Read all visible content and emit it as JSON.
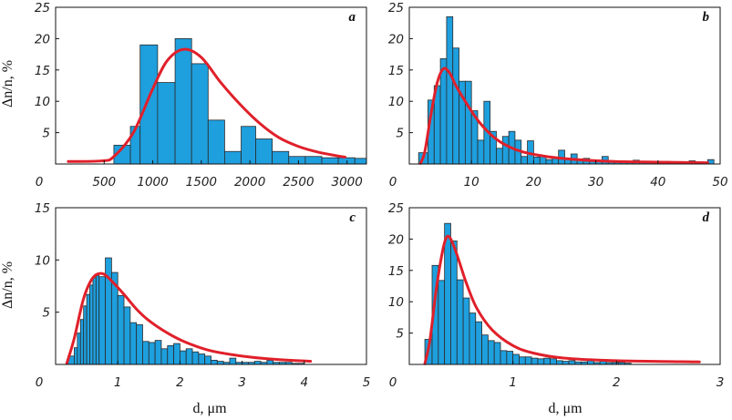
{
  "ylabel": "Δn/n, %",
  "xlabel": "d, μm",
  "colors": {
    "bar": "#1e9fde",
    "fit": "#e0202a"
  },
  "chart_data": [
    {
      "label": "a",
      "type": "bar",
      "xlim": [
        0,
        3200
      ],
      "ylim": [
        0,
        25
      ],
      "xticks": [
        0,
        500,
        1000,
        1500,
        2000,
        2500,
        3000
      ],
      "yticks": [
        5,
        10,
        15,
        20,
        25
      ],
      "bin_edges": [
        600,
        770,
        870,
        1050,
        1230,
        1400,
        1570,
        1740,
        1910,
        2060,
        2230,
        2400,
        2570,
        2740,
        2910,
        3080,
        3200
      ],
      "values": [
        3,
        6,
        19,
        13,
        20,
        16,
        7,
        2,
        6,
        4,
        2,
        1.2,
        1.2,
        1,
        1,
        0.9
      ],
      "fit": [
        [
          130,
          0.4
        ],
        [
          480,
          0.5
        ],
        [
          600,
          1.2
        ],
        [
          800,
          5
        ],
        [
          1000,
          12
        ],
        [
          1150,
          16.5
        ],
        [
          1320,
          18.3
        ],
        [
          1500,
          17
        ],
        [
          1700,
          13
        ],
        [
          1900,
          9.5
        ],
        [
          2100,
          6.5
        ],
        [
          2300,
          4.2
        ],
        [
          2500,
          2.8
        ],
        [
          2700,
          1.9
        ],
        [
          2900,
          1.3
        ],
        [
          2980,
          1.1
        ]
      ]
    },
    {
      "label": "b",
      "type": "bar",
      "xlim": [
        0,
        50
      ],
      "ylim": [
        0,
        25
      ],
      "xticks": [
        0,
        10,
        20,
        30,
        40,
        50
      ],
      "yticks": [
        5,
        10,
        15,
        20,
        25
      ],
      "bin_edges": [
        1.5,
        3,
        4,
        5,
        6,
        7,
        8,
        9,
        10,
        11,
        12,
        13,
        14,
        15,
        16,
        17,
        18,
        19,
        20,
        21,
        22,
        23,
        24,
        25,
        26,
        27,
        28,
        29,
        30,
        31,
        32,
        33,
        34,
        35,
        36,
        37,
        38,
        39,
        40,
        41,
        42,
        43,
        44,
        45,
        46,
        47,
        48,
        49
      ],
      "values": [
        1.8,
        10.2,
        12.5,
        16.8,
        23.5,
        18.5,
        13.2,
        13.2,
        8.5,
        3.8,
        10,
        5.2,
        2.5,
        4.4,
        5.2,
        3.8,
        1.2,
        3.7,
        1.1,
        1.3,
        0.7,
        0.9,
        2.2,
        0.7,
        1.6,
        0.8,
        0.9,
        0.6,
        0.4,
        1.2,
        0.3,
        0.3,
        0.5,
        0.3,
        0.6,
        0.3,
        0.2,
        0.2,
        0.2,
        0.4,
        0.2,
        0.2,
        0.2,
        0.5,
        0.2,
        0.2,
        0.7
      ],
      "fit": [
        [
          1.8,
          0.1
        ],
        [
          2.5,
          2
        ],
        [
          3.5,
          8
        ],
        [
          4.5,
          13
        ],
        [
          5.5,
          15.2
        ],
        [
          6.5,
          14.5
        ],
        [
          7.5,
          12.5
        ],
        [
          9,
          10
        ],
        [
          11,
          7
        ],
        [
          13,
          4.8
        ],
        [
          15,
          3.3
        ],
        [
          18,
          2
        ],
        [
          22,
          1.2
        ],
        [
          27,
          0.7
        ],
        [
          33,
          0.4
        ],
        [
          40,
          0.3
        ],
        [
          48,
          0.2
        ]
      ]
    },
    {
      "label": "c",
      "type": "bar",
      "xlim": [
        0,
        5
      ],
      "ylim": [
        0,
        15
      ],
      "xticks": [
        0,
        1,
        2,
        3,
        4,
        5
      ],
      "yticks": [
        5,
        10,
        15
      ],
      "bin_edges": [
        0.2,
        0.3,
        0.35,
        0.4,
        0.45,
        0.5,
        0.55,
        0.6,
        0.65,
        0.7,
        0.8,
        0.9,
        1,
        1.1,
        1.2,
        1.3,
        1.4,
        1.5,
        1.6,
        1.7,
        1.8,
        1.9,
        2,
        2.1,
        2.2,
        2.3,
        2.4,
        2.5,
        2.6,
        2.7,
        2.8,
        2.9,
        3,
        3.1,
        3.2,
        3.3,
        3.4,
        3.5,
        3.6,
        3.7,
        3.8,
        3.9,
        4
      ],
      "values": [
        0.8,
        1.6,
        3,
        4.3,
        5.6,
        6.7,
        7.6,
        8.3,
        8.5,
        8.4,
        10.2,
        8.8,
        6.6,
        5.5,
        4,
        3.8,
        2.2,
        2.1,
        2.3,
        1.5,
        1.8,
        2,
        1.3,
        1.5,
        1.2,
        1,
        0.8,
        0.4,
        0.3,
        0.2,
        0.6,
        0.2,
        0.2,
        0.2,
        0.3,
        0.2,
        0.4,
        0.2,
        0.2,
        0.2,
        0.1,
        0.1
      ],
      "fit": [
        [
          0.18,
          0.1
        ],
        [
          0.3,
          2.5
        ],
        [
          0.45,
          6.3
        ],
        [
          0.6,
          8.3
        ],
        [
          0.75,
          8.7
        ],
        [
          0.9,
          8
        ],
        [
          1.1,
          6.7
        ],
        [
          1.3,
          5.3
        ],
        [
          1.5,
          4.2
        ],
        [
          1.8,
          3
        ],
        [
          2.1,
          2.1
        ],
        [
          2.5,
          1.3
        ],
        [
          3,
          0.8
        ],
        [
          3.5,
          0.5
        ],
        [
          4.1,
          0.3
        ]
      ]
    },
    {
      "label": "d",
      "type": "bar",
      "xlim": [
        0,
        3
      ],
      "ylim": [
        0,
        25
      ],
      "xticks": [
        0,
        1,
        2,
        3
      ],
      "yticks": [
        5,
        10,
        15,
        20,
        25
      ],
      "bin_edges": [
        0.15,
        0.22,
        0.28,
        0.34,
        0.4,
        0.46,
        0.52,
        0.58,
        0.64,
        0.7,
        0.76,
        0.82,
        0.88,
        0.94,
        1,
        1.06,
        1.12,
        1.18,
        1.24,
        1.3,
        1.36,
        1.42,
        1.48,
        1.54,
        1.6,
        1.66,
        1.72,
        1.78,
        1.84,
        1.9,
        1.96,
        2.02,
        2.08,
        2.14
      ],
      "values": [
        4,
        15.8,
        13.4,
        22.5,
        19.7,
        13.5,
        10.6,
        8.2,
        6.8,
        4.7,
        3.8,
        3.5,
        2.2,
        2.1,
        1.6,
        1.2,
        1.2,
        1,
        0.9,
        1,
        0.9,
        0.6,
        0.5,
        0.6,
        0.4,
        0.4,
        0.7,
        0.3,
        0.6,
        0.3,
        0.3,
        0.3,
        0.2
      ],
      "fit": [
        [
          0.15,
          0.1
        ],
        [
          0.2,
          4
        ],
        [
          0.26,
          12
        ],
        [
          0.32,
          18
        ],
        [
          0.36,
          20.3
        ],
        [
          0.4,
          20
        ],
        [
          0.46,
          17.5
        ],
        [
          0.55,
          13
        ],
        [
          0.65,
          9
        ],
        [
          0.8,
          5.5
        ],
        [
          1,
          3
        ],
        [
          1.2,
          1.8
        ],
        [
          1.5,
          1
        ],
        [
          2,
          0.6
        ],
        [
          2.8,
          0.4
        ]
      ]
    }
  ]
}
